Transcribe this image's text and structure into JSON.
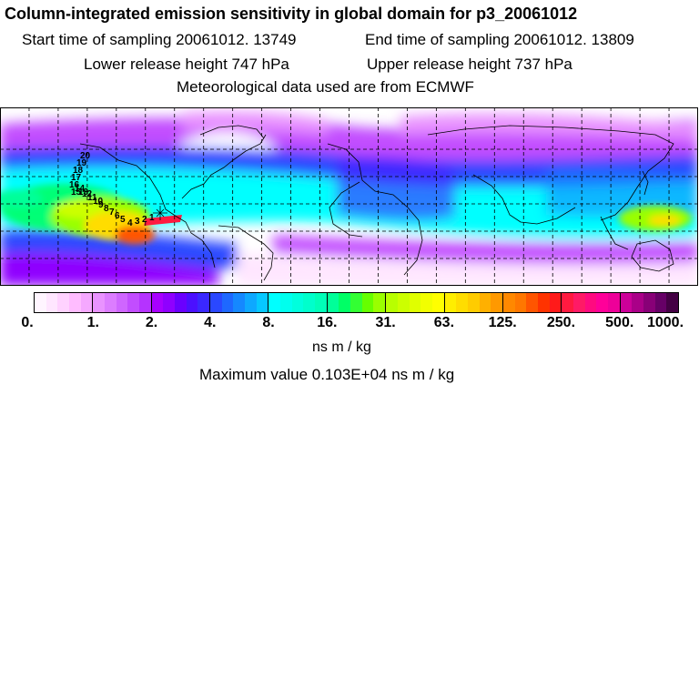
{
  "header": {
    "title": "Column-integrated emission sensitivity in global domain for p3_20061012",
    "start_time": "Start time of sampling 20061012. 13749",
    "end_time": "End time of sampling 20061012. 13809",
    "lower_height": "Lower release height  747 hPa",
    "upper_height": "Upper release height  737 hPa",
    "met_data": "Meteorological data used are from ECMWF"
  },
  "map": {
    "trajectory_labels": [
      "20",
      "19",
      "18",
      "17",
      "16",
      "15",
      "14",
      "13",
      "12",
      "11",
      "10",
      "9",
      "8",
      "7",
      "6",
      "5",
      "4",
      "3",
      "2",
      "1"
    ],
    "colors": {
      "background": "#ffffff",
      "tropics": "#00ffff",
      "high": "#ffd700",
      "peak": "#ff2a6e"
    }
  },
  "colorbar": {
    "ticks": [
      "0.",
      "1.",
      "2.",
      "4.",
      "8.",
      "16.",
      "31.",
      "63.",
      "125.",
      "250.",
      "500.",
      "1000."
    ],
    "groups": [
      [
        "#fff5ff",
        "#ffe6ff",
        "#ffd2ff",
        "#ffbcff",
        "#f5a8ff"
      ],
      [
        "#e993ff",
        "#dc7dff",
        "#cf66ff",
        "#c24dff",
        "#b533ff"
      ],
      [
        "#a800ff",
        "#8f00ff",
        "#6a00ff",
        "#4b10ff",
        "#3a28ff"
      ],
      [
        "#2a48ff",
        "#1e68ff",
        "#1588ff",
        "#0ea8ff",
        "#06c8ff"
      ],
      [
        "#00ffff",
        "#00ffee",
        "#00ffdd",
        "#00ffcc",
        "#00ffb8"
      ],
      [
        "#00ff99",
        "#00ff66",
        "#33ff33",
        "#66ff00",
        "#99ff00"
      ],
      [
        "#b8ff00",
        "#ccff00",
        "#e0ff00",
        "#f2ff00",
        "#ffff00"
      ],
      [
        "#ffee00",
        "#ffdd00",
        "#ffcc00",
        "#ffb000",
        "#ff9900"
      ],
      [
        "#ff8800",
        "#ff7700",
        "#ff5500",
        "#ff3300",
        "#ff1a1a"
      ],
      [
        "#ff1a40",
        "#ff1a66",
        "#ff0a80",
        "#ff0099",
        "#ee0099"
      ],
      [
        "#cc0099",
        "#aa0088",
        "#880077",
        "#660066",
        "#440044"
      ]
    ],
    "units": "ns m / kg",
    "max_value": "Maximum value  0.103E+04 ns m / kg"
  }
}
